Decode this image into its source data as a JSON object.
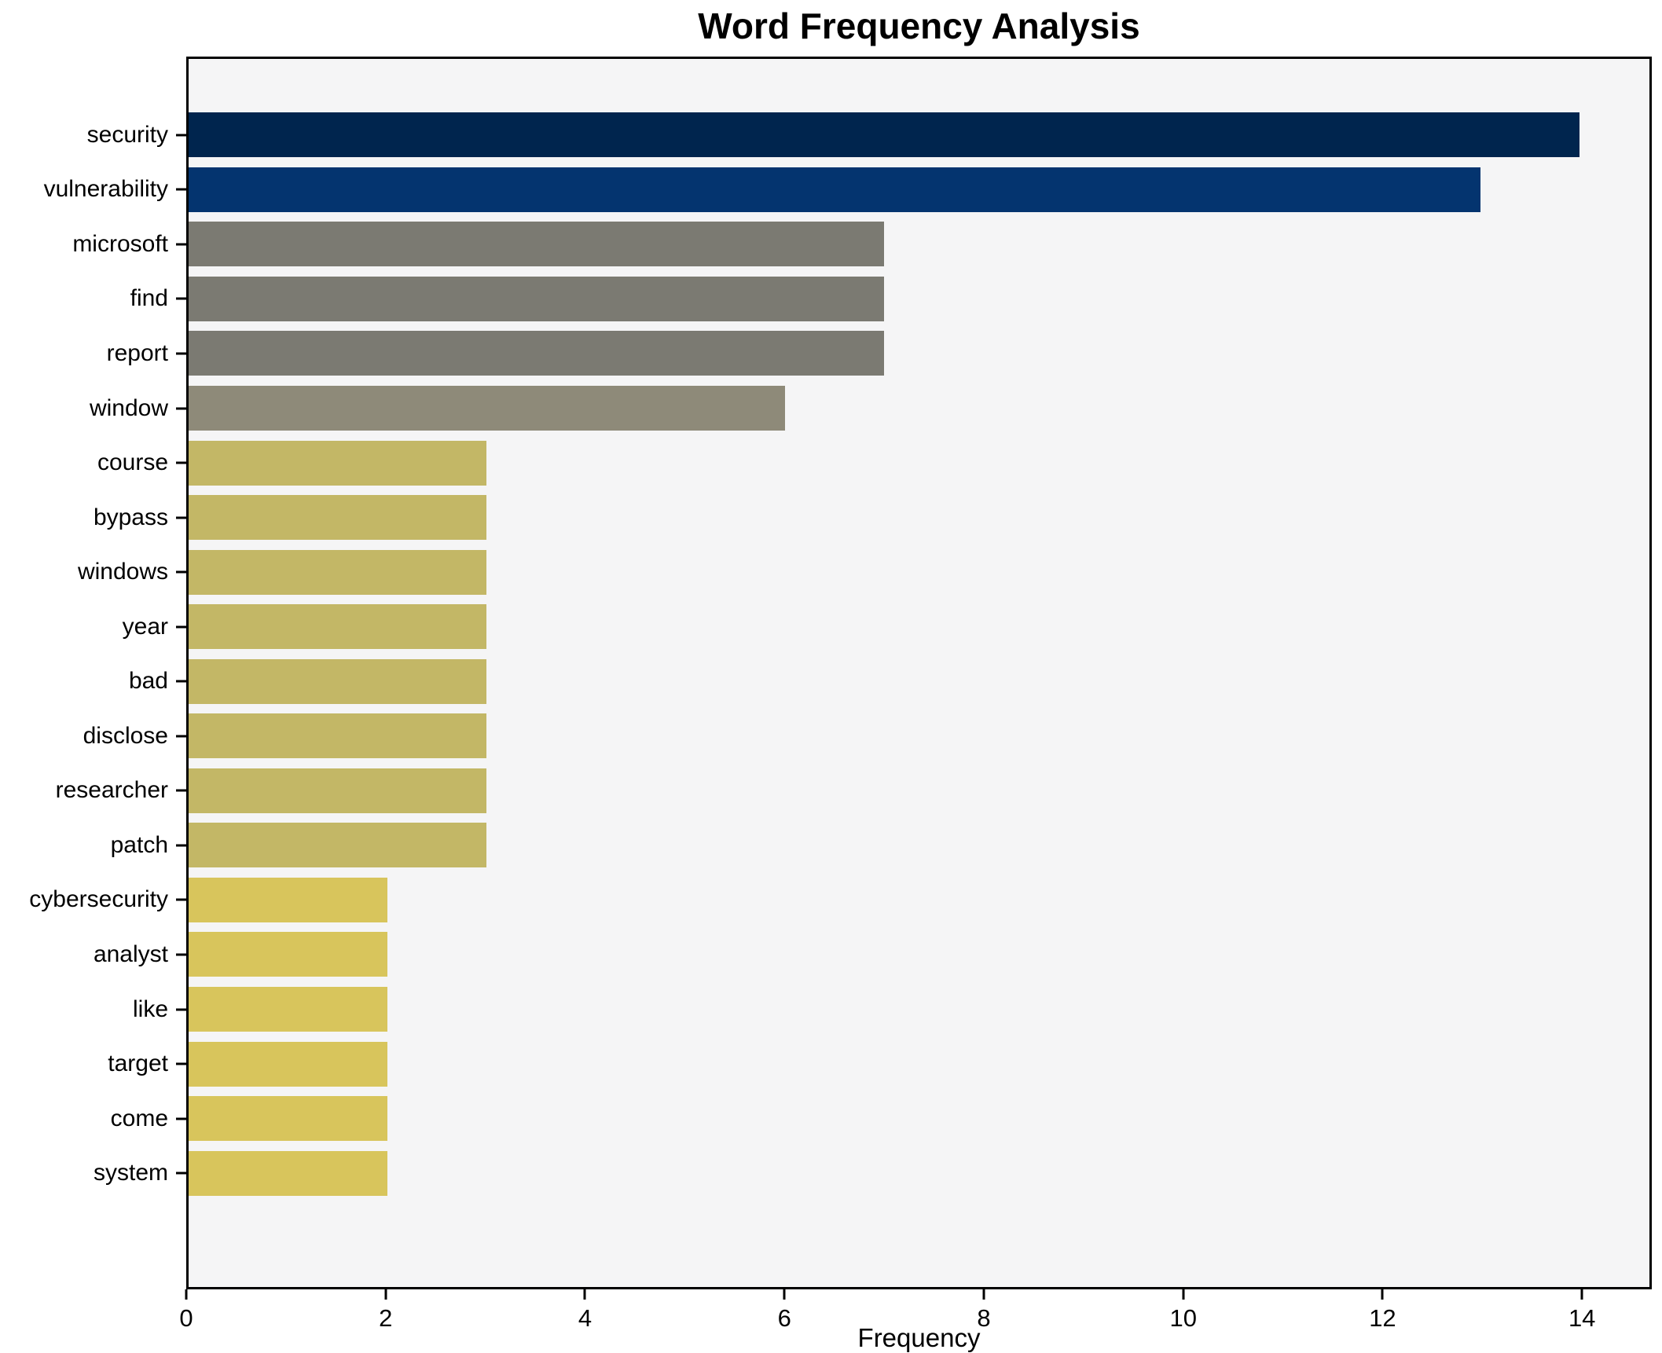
{
  "chart_data": {
    "type": "bar",
    "orientation": "horizontal",
    "title": "Word Frequency Analysis",
    "xlabel": "Frequency",
    "ylabel": "",
    "xlim": [
      0,
      14.7
    ],
    "xticks": [
      0,
      2,
      4,
      6,
      8,
      10,
      12,
      14
    ],
    "grid": false,
    "legend": false,
    "categories": [
      "security",
      "vulnerability",
      "microsoft",
      "find",
      "report",
      "window",
      "course",
      "bypass",
      "windows",
      "year",
      "bad",
      "disclose",
      "researcher",
      "patch",
      "cybersecurity",
      "analyst",
      "like",
      "target",
      "come",
      "system"
    ],
    "values": [
      14,
      13,
      7,
      7,
      7,
      6,
      3,
      3,
      3,
      3,
      3,
      3,
      3,
      3,
      2,
      2,
      2,
      2,
      2,
      2
    ],
    "bar_colors": [
      "#00254e",
      "#04346f",
      "#7b7a72",
      "#7b7a72",
      "#7b7a72",
      "#8e8a79",
      "#c3b766",
      "#c3b766",
      "#c3b766",
      "#c3b766",
      "#c3b766",
      "#c3b766",
      "#c3b766",
      "#c3b766",
      "#d8c55c",
      "#d8c55c",
      "#d8c55c",
      "#d8c55c",
      "#d8c55c",
      "#d8c55c"
    ]
  },
  "colors": {
    "plot_background": "#f5f5f6",
    "figure_background": "#ffffff",
    "spine": "#000000",
    "text": "#000000"
  }
}
